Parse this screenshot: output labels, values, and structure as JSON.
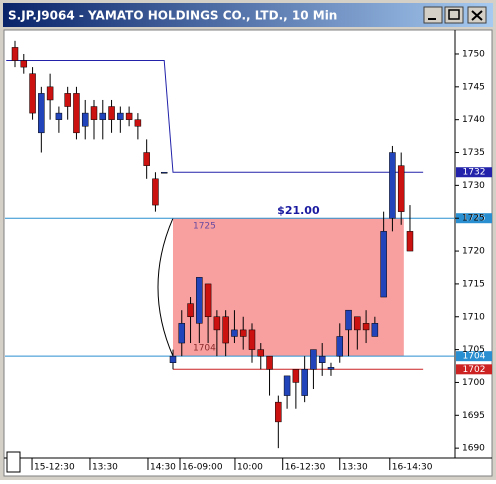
{
  "chart_data": {
    "type": "candlestick",
    "title": "S.JP.J9064 - YAMATO HOLDINGS CO., LTD., 10 Min",
    "x": [
      0,
      1,
      2,
      3,
      4,
      5,
      6,
      7,
      8,
      9,
      10,
      11,
      12,
      13,
      14,
      15,
      16,
      17,
      18,
      19,
      20,
      21,
      22,
      23,
      24,
      25,
      26,
      27,
      28,
      29,
      30,
      31,
      32,
      33,
      34,
      35,
      36,
      37,
      38,
      39,
      40,
      41,
      42,
      43,
      44,
      45
    ],
    "open": [
      1751,
      1749,
      1747,
      1738,
      1745,
      1740,
      1744,
      1744,
      1739,
      1742,
      1740,
      1742,
      1740,
      1741,
      1740,
      1735,
      1731,
      1732,
      1703,
      1706,
      1712,
      1709,
      1715,
      1710,
      1710,
      1707,
      1708,
      1708,
      1705,
      1704,
      1697,
      1698,
      1702,
      1698,
      1702,
      1703,
      1702,
      1704,
      1708,
      1710,
      1709,
      1707,
      1713,
      1725,
      1733,
      1723
    ],
    "high": [
      1752,
      1750,
      1748,
      1745,
      1747,
      1742,
      1745,
      1745,
      1743,
      1743,
      1743,
      1743,
      1742,
      1742,
      1741,
      1737,
      1732,
      1732,
      1705,
      1711,
      1713,
      1716,
      1715,
      1711,
      1711,
      1711,
      1710,
      1709,
      1706,
      1704,
      1698,
      1701,
      1702,
      1704,
      1705,
      1706,
      1703,
      1709,
      1711,
      1710,
      1711,
      1710,
      1726,
      1736,
      1735,
      1727
    ],
    "low": [
      1748,
      1747,
      1740,
      1735,
      1740,
      1738,
      1740,
      1737,
      1737,
      1737,
      1737,
      1738,
      1738,
      1739,
      1737,
      1731,
      1726,
      1732,
      1702,
      1704,
      1706,
      1706,
      1706,
      1704,
      1704,
      1706,
      1705,
      1703,
      1702,
      1698,
      1690,
      1696,
      1696,
      1697,
      1699,
      1701,
      1701,
      1703,
      1704,
      1705,
      1706,
      1707,
      1713,
      1723,
      1724,
      1720
    ],
    "close": [
      1749,
      1748,
      1741,
      1744,
      1743,
      1741,
      1742,
      1738,
      1741,
      1740,
      1741,
      1740,
      1741,
      1740,
      1739,
      1733,
      1727,
      1732,
      1704,
      1709,
      1710,
      1716,
      1710,
      1708,
      1706,
      1708,
      1707,
      1705,
      1704,
      1702,
      1694,
      1701,
      1700,
      1702,
      1705,
      1704,
      1702.3,
      1707,
      1711,
      1708,
      1708,
      1709,
      1723,
      1735,
      1726,
      1720
    ],
    "up_color": "#2244bb",
    "down_color": "#cc1111",
    "overlay": {
      "x": [
        -1,
        17,
        18,
        46.5
      ],
      "values": [
        1749,
        1749,
        1732,
        1732
      ],
      "color": "#2222aa"
    },
    "levels": [
      {
        "value": 1725,
        "color": "#2a8fd0"
      },
      {
        "value": 1704,
        "color": "#2a8fd0"
      },
      {
        "value": 1702,
        "color": "#cc2222",
        "x": [
          18,
          46.5
        ]
      }
    ],
    "range_box": {
      "top": 1725,
      "bottom": 1704,
      "x": [
        18,
        44.3
      ],
      "color": "#f78f8f",
      "label": {
        "value": 21,
        "label": "$21.00"
      }
    },
    "xlim": [
      -1.14,
      50.13
    ],
    "ylim": [
      1688.5,
      1753.65
    ],
    "yticks": [
      1690,
      1695,
      1700,
      1705,
      1710,
      1715,
      1720,
      1725,
      1730,
      1735,
      1740,
      1745,
      1750
    ],
    "xticks": [
      {
        "value": 1.94,
        "label": "15-12:30"
      },
      {
        "value": 8.54,
        "label": "13:30"
      },
      {
        "value": 15.15,
        "label": "14:30"
      },
      {
        "value": 18.8,
        "label": "16-09:00"
      },
      {
        "value": 25.06,
        "label": "10:00"
      },
      {
        "value": 30.5,
        "label": "16-12:30"
      },
      {
        "value": 37.0,
        "label": "13:30"
      },
      {
        "value": 42.7,
        "label": "16-14:30"
      }
    ]
  }
}
